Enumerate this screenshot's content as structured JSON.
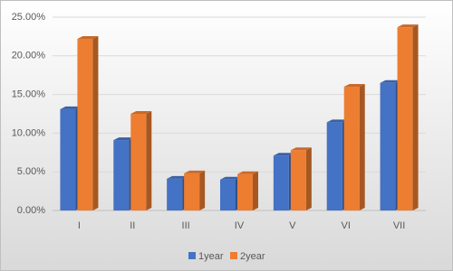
{
  "chart_data": {
    "type": "bar3d",
    "categories": [
      "I",
      "II",
      "III",
      "IV",
      "V",
      "VI",
      "VII"
    ],
    "series": [
      {
        "name": "1year",
        "color": "#4472c4",
        "values": [
          13.1,
          9.1,
          4.1,
          4.0,
          7.1,
          11.4,
          16.5
        ]
      },
      {
        "name": "2year",
        "color": "#ed7d31",
        "values": [
          22.2,
          12.5,
          4.8,
          4.7,
          7.8,
          16.0,
          23.7
        ]
      }
    ],
    "ylim": [
      0,
      25
    ],
    "yticks": [
      {
        "value": 0,
        "label": "0.00%"
      },
      {
        "value": 5,
        "label": "5.00%"
      },
      {
        "value": 10,
        "label": "10.00%"
      },
      {
        "value": 15,
        "label": "15.00%"
      },
      {
        "value": 20,
        "label": "20.00%"
      },
      {
        "value": 25,
        "label": "25.00%"
      }
    ],
    "grid": true,
    "legend": "bottom"
  }
}
